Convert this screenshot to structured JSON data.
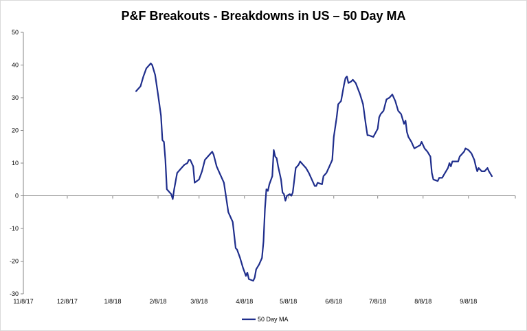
{
  "chart_data": {
    "type": "line",
    "title": "P&F Breakouts - Breakdowns in US – 50 Day MA",
    "xlabel": "",
    "ylabel": "",
    "ylim": [
      -30,
      50
    ],
    "y_ticks": [
      -30,
      -20,
      -10,
      0,
      10,
      20,
      30,
      40,
      50
    ],
    "x_range": [
      "2017-11-08",
      "2018-10-10"
    ],
    "x_tick_labels": [
      "11/8/17",
      "12/8/17",
      "1/8/18",
      "2/8/18",
      "3/8/18",
      "4/8/18",
      "5/8/18",
      "6/8/18",
      "7/8/18",
      "8/8/18",
      "9/8/18"
    ],
    "x_tick_dates": [
      "2017-11-08",
      "2017-12-08",
      "2018-01-08",
      "2018-02-08",
      "2018-03-08",
      "2018-04-08",
      "2018-05-08",
      "2018-06-08",
      "2018-07-08",
      "2018-08-08",
      "2018-09-08"
    ],
    "grid": false,
    "legend": "bottom",
    "line_color": "#1f2e8c",
    "series": [
      {
        "name": "50 Day MA",
        "points": [
          [
            "2018-01-24",
            32
          ],
          [
            "2018-01-27",
            33.5
          ],
          [
            "2018-01-29",
            36.5
          ],
          [
            "2018-01-31",
            39
          ],
          [
            "2018-02-02",
            40
          ],
          [
            "2018-02-03",
            40.5
          ],
          [
            "2018-02-04",
            40
          ],
          [
            "2018-02-06",
            37
          ],
          [
            "2018-02-08",
            31
          ],
          [
            "2018-02-10",
            24.5
          ],
          [
            "2018-02-11",
            17
          ],
          [
            "2018-02-12",
            16.5
          ],
          [
            "2018-02-13",
            11
          ],
          [
            "2018-02-14",
            2
          ],
          [
            "2018-02-17",
            0.5
          ],
          [
            "2018-02-18",
            -1
          ],
          [
            "2018-02-19",
            2
          ],
          [
            "2018-02-21",
            7
          ],
          [
            "2018-02-24",
            8.5
          ],
          [
            "2018-02-26",
            9.5
          ],
          [
            "2018-02-28",
            10
          ],
          [
            "2018-03-01",
            11
          ],
          [
            "2018-03-02",
            11
          ],
          [
            "2018-03-04",
            9
          ],
          [
            "2018-03-05",
            4
          ],
          [
            "2018-03-08",
            5
          ],
          [
            "2018-03-10",
            7.5
          ],
          [
            "2018-03-12",
            11
          ],
          [
            "2018-03-15",
            12.5
          ],
          [
            "2018-03-17",
            13.5
          ],
          [
            "2018-03-18",
            12.5
          ],
          [
            "2018-03-20",
            9
          ],
          [
            "2018-03-22",
            7
          ],
          [
            "2018-03-24",
            5
          ],
          [
            "2018-03-25",
            4
          ],
          [
            "2018-03-27",
            -2
          ],
          [
            "2018-03-28",
            -5
          ],
          [
            "2018-03-31",
            -8
          ],
          [
            "2018-04-02",
            -16
          ],
          [
            "2018-04-03",
            -16.5
          ],
          [
            "2018-04-05",
            -19
          ],
          [
            "2018-04-07",
            -22
          ],
          [
            "2018-04-09",
            -24.5
          ],
          [
            "2018-04-10",
            -23.5
          ],
          [
            "2018-04-11",
            -25.5
          ],
          [
            "2018-04-14",
            -26
          ],
          [
            "2018-04-15",
            -25
          ],
          [
            "2018-04-16",
            -22.5
          ],
          [
            "2018-04-18",
            -21
          ],
          [
            "2018-04-20",
            -19
          ],
          [
            "2018-04-21",
            -14
          ],
          [
            "2018-04-22",
            -4
          ],
          [
            "2018-04-23",
            2
          ],
          [
            "2018-04-24",
            1.5
          ],
          [
            "2018-04-25",
            3.5
          ],
          [
            "2018-04-27",
            6
          ],
          [
            "2018-04-28",
            14
          ],
          [
            "2018-04-29",
            12
          ],
          [
            "2018-04-30",
            11.5
          ],
          [
            "2018-05-01",
            9
          ],
          [
            "2018-05-03",
            5
          ],
          [
            "2018-05-04",
            1
          ],
          [
            "2018-05-05",
            0.5
          ],
          [
            "2018-05-06",
            -1.5
          ],
          [
            "2018-05-07",
            0
          ],
          [
            "2018-05-09",
            0.5
          ],
          [
            "2018-05-10",
            0
          ],
          [
            "2018-05-11",
            1
          ],
          [
            "2018-05-13",
            8.5
          ],
          [
            "2018-05-15",
            9.5
          ],
          [
            "2018-05-16",
            10.5
          ],
          [
            "2018-05-17",
            10
          ],
          [
            "2018-05-18",
            9.5
          ],
          [
            "2018-05-20",
            8.5
          ],
          [
            "2018-05-22",
            7
          ],
          [
            "2018-05-24",
            5
          ],
          [
            "2018-05-26",
            3
          ],
          [
            "2018-05-27",
            3
          ],
          [
            "2018-05-28",
            4
          ],
          [
            "2018-05-31",
            3.5
          ],
          [
            "2018-06-01",
            6
          ],
          [
            "2018-06-03",
            7
          ],
          [
            "2018-06-05",
            9
          ],
          [
            "2018-06-07",
            11
          ],
          [
            "2018-06-08",
            18
          ],
          [
            "2018-06-10",
            24
          ],
          [
            "2018-06-11",
            28
          ],
          [
            "2018-06-13",
            29
          ],
          [
            "2018-06-15",
            34
          ],
          [
            "2018-06-16",
            36
          ],
          [
            "2018-06-17",
            36.5
          ],
          [
            "2018-06-18",
            34.5
          ],
          [
            "2018-06-20",
            35
          ],
          [
            "2018-06-21",
            35.5
          ],
          [
            "2018-06-23",
            34.5
          ],
          [
            "2018-06-26",
            31
          ],
          [
            "2018-06-28",
            28
          ],
          [
            "2018-06-30",
            21.5
          ],
          [
            "2018-07-01",
            18.5
          ],
          [
            "2018-07-02",
            18.5
          ],
          [
            "2018-07-05",
            18
          ],
          [
            "2018-07-08",
            20.5
          ],
          [
            "2018-07-09",
            24
          ],
          [
            "2018-07-10",
            25
          ],
          [
            "2018-07-12",
            26
          ],
          [
            "2018-07-14",
            29.5
          ],
          [
            "2018-07-16",
            30
          ],
          [
            "2018-07-18",
            31
          ],
          [
            "2018-07-20",
            29
          ],
          [
            "2018-07-22",
            26
          ],
          [
            "2018-07-24",
            25
          ],
          [
            "2018-07-26",
            22
          ],
          [
            "2018-07-27",
            23
          ],
          [
            "2018-07-28",
            19.5
          ],
          [
            "2018-07-29",
            18
          ],
          [
            "2018-07-31",
            16.5
          ],
          [
            "2018-08-02",
            14.5
          ],
          [
            "2018-08-04",
            15
          ],
          [
            "2018-08-06",
            15.5
          ],
          [
            "2018-08-07",
            16.5
          ],
          [
            "2018-08-09",
            14.5
          ],
          [
            "2018-08-11",
            13.5
          ],
          [
            "2018-08-13",
            12
          ],
          [
            "2018-08-14",
            7
          ],
          [
            "2018-08-15",
            5
          ],
          [
            "2018-08-18",
            4.5
          ],
          [
            "2018-08-19",
            5.5
          ],
          [
            "2018-08-21",
            5.5
          ],
          [
            "2018-08-23",
            7
          ],
          [
            "2018-08-25",
            8.5
          ],
          [
            "2018-08-26",
            10
          ],
          [
            "2018-08-27",
            9
          ],
          [
            "2018-08-28",
            10.5
          ],
          [
            "2018-09-01",
            10.5
          ],
          [
            "2018-09-02",
            12
          ],
          [
            "2018-09-03",
            12.5
          ],
          [
            "2018-09-05",
            13.5
          ],
          [
            "2018-09-06",
            14.5
          ],
          [
            "2018-09-08",
            14
          ],
          [
            "2018-09-10",
            13
          ],
          [
            "2018-09-12",
            11
          ],
          [
            "2018-09-13",
            9
          ],
          [
            "2018-09-14",
            7.5
          ],
          [
            "2018-09-15",
            8.5
          ],
          [
            "2018-09-17",
            7.5
          ],
          [
            "2018-09-19",
            7.5
          ],
          [
            "2018-09-21",
            8.5
          ],
          [
            "2018-09-22",
            7.5
          ],
          [
            "2018-09-24",
            6
          ]
        ]
      }
    ]
  }
}
